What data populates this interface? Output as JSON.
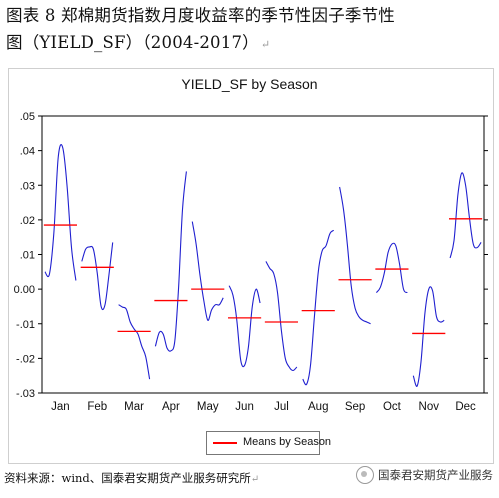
{
  "document": {
    "title_line1": "图表 8 郑棉期货指数月度收益率的季节性因子季节性",
    "title_line2": "图（YIELD_SF）（2004-2017）",
    "paragraph_mark": "↵",
    "source": "资料来源：wind、国泰君安期货产业服务研究所",
    "watermark": "国泰君安期货产业服务"
  },
  "chart_data": {
    "type": "line",
    "title": "YIELD_SF by Season",
    "xlabel": "",
    "ylabel": "",
    "categories": [
      "Jan",
      "Feb",
      "Mar",
      "Apr",
      "May",
      "Jun",
      "Jul",
      "Aug",
      "Sep",
      "Oct",
      "Nov",
      "Dec"
    ],
    "ylim": [
      -0.03,
      0.05
    ],
    "yticks": [
      ".05",
      ".04",
      ".03",
      ".02",
      ".01",
      "0.00",
      "-.01",
      "-.02",
      "-.03"
    ],
    "ytick_values": [
      0.05,
      0.04,
      0.03,
      0.02,
      0.01,
      0.0,
      -0.01,
      -0.02,
      -0.03
    ],
    "legend": {
      "label": "Means by Season",
      "placement": "bottom-center"
    },
    "series_color": "#2020d0",
    "means_color": "#ff0000",
    "grid": false,
    "means": [
      0.0185,
      0.0063,
      -0.0122,
      -0.0033,
      0.0,
      -0.0083,
      -0.0095,
      -0.0062,
      0.0027,
      0.0058,
      -0.0128,
      0.0203
    ],
    "seasons": [
      [
        0.005,
        0.0043,
        0.016,
        0.038,
        0.041,
        0.03,
        0.012,
        0.0025
      ],
      [
        0.008,
        0.0115,
        0.0122,
        0.0115,
        0.0045,
        -0.005,
        -0.0045,
        0.004,
        0.0135
      ],
      [
        -0.0045,
        -0.0052,
        -0.0058,
        -0.0095,
        -0.0115,
        -0.013,
        -0.0165,
        -0.0195,
        -0.026
      ],
      [
        -0.0165,
        -0.0125,
        -0.013,
        -0.017,
        -0.0178,
        -0.015,
        0.001,
        0.023,
        0.034
      ],
      [
        0.0195,
        0.013,
        0.004,
        -0.0035,
        -0.009,
        -0.006,
        -0.0045,
        -0.0045,
        -0.0025
      ],
      [
        0.001,
        -0.0018,
        -0.009,
        -0.0205,
        -0.022,
        -0.0165,
        -0.005,
        0.0,
        -0.004
      ],
      [
        0.008,
        0.006,
        0.0045,
        -0.001,
        -0.012,
        -0.02,
        -0.0225,
        -0.0235,
        -0.0225
      ],
      [
        -0.026,
        -0.0275,
        -0.022,
        -0.008,
        0.005,
        0.011,
        0.0125,
        0.016,
        0.017
      ],
      [
        0.0295,
        0.023,
        0.013,
        0.001,
        -0.0055,
        -0.008,
        -0.009,
        -0.0095,
        -0.01
      ],
      [
        -0.001,
        0.0005,
        0.0045,
        0.0105,
        0.013,
        0.0125,
        0.007,
        0.0,
        -0.001
      ],
      [
        -0.025,
        -0.028,
        -0.021,
        -0.007,
        0.0,
        -0.0005,
        -0.008,
        -0.0095,
        -0.009
      ],
      [
        0.009,
        0.014,
        0.027,
        0.0335,
        0.03,
        0.0205,
        0.013,
        0.012,
        0.0135
      ]
    ]
  }
}
